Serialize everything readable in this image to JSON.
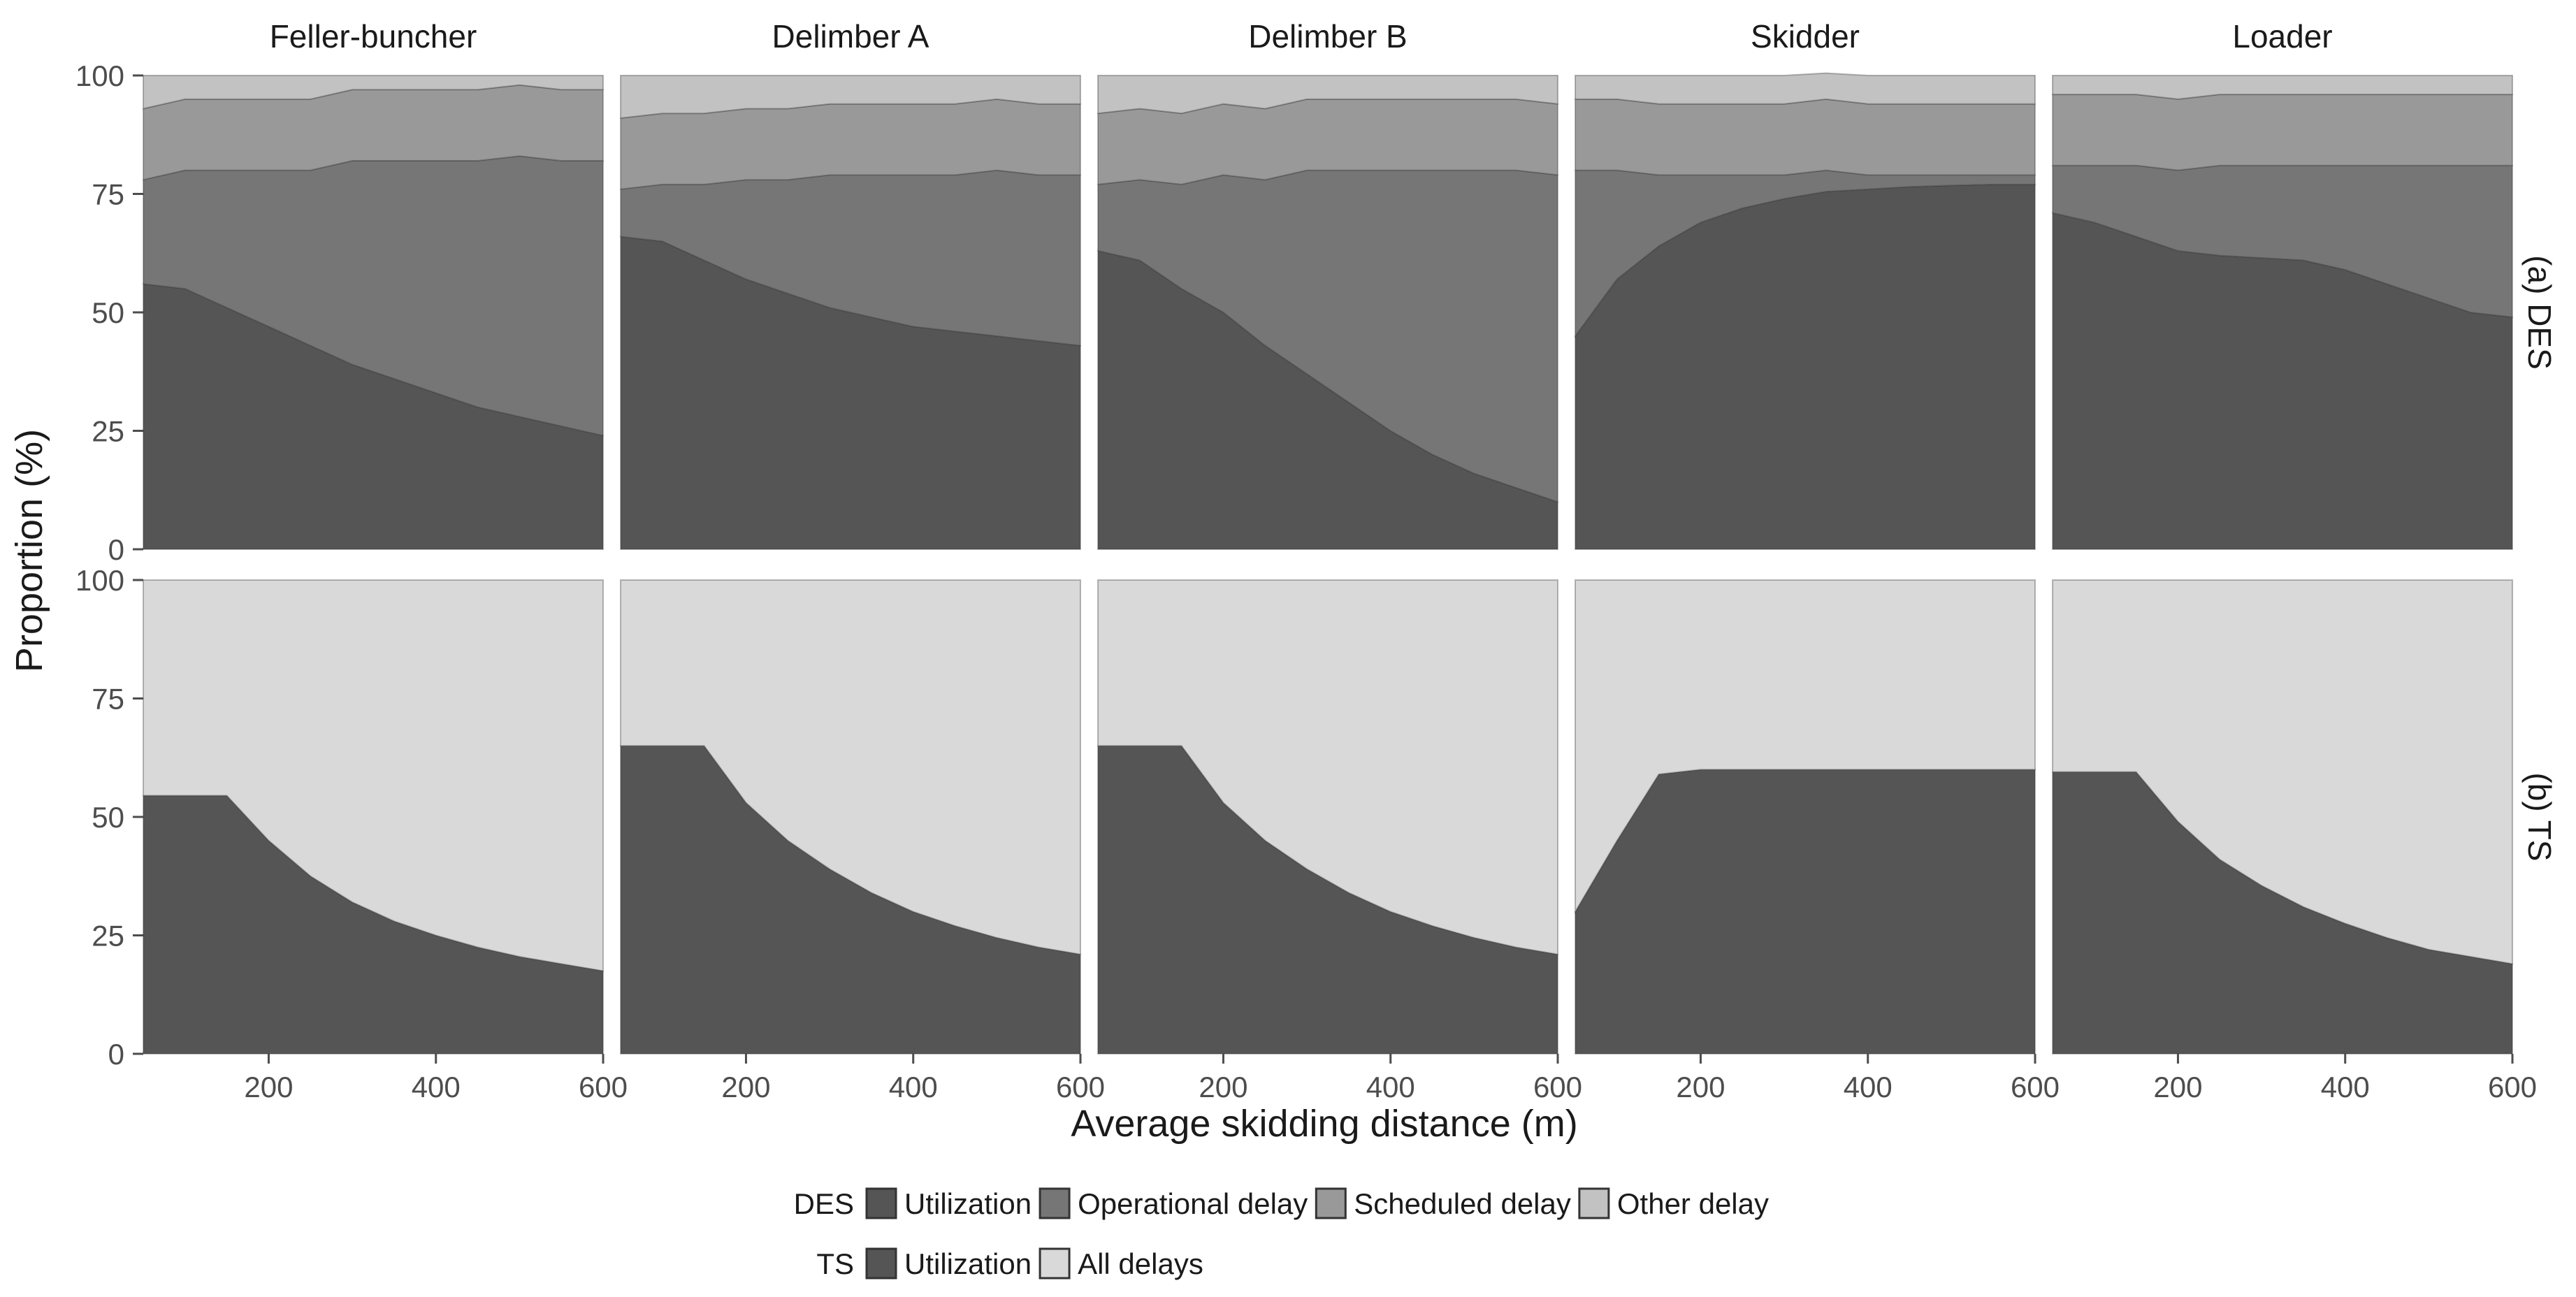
{
  "chart_data": {
    "type": "area",
    "title": "",
    "xlabel": "Average skidding distance (m)",
    "ylabel": "Proportion (%)",
    "xlim": [
      50,
      600
    ],
    "ylim": [
      0,
      100
    ],
    "xticks": [
      200,
      400,
      600
    ],
    "yticks": [
      0,
      25,
      50,
      75,
      100
    ],
    "columns": [
      "Feller-buncher",
      "Delimber A",
      "Delimber B",
      "Skidder",
      "Loader"
    ],
    "rows": [
      {
        "label": "(a) DES",
        "categories": [
          "Utilization",
          "Operational delay",
          "Scheduled delay",
          "Other delay"
        ],
        "colors": [
          "#555555",
          "#767676",
          "#999999",
          "#c2c2c2"
        ],
        "panels": [
          {
            "x": [
              50,
              100,
              150,
              200,
              250,
              300,
              350,
              400,
              450,
              500,
              550,
              600
            ],
            "series": [
              {
                "name": "Utilization",
                "values": [
                  56,
                  55,
                  51,
                  47,
                  43,
                  39,
                  36,
                  33,
                  30,
                  28,
                  26,
                  24
                ]
              },
              {
                "name": "Operational delay",
                "values": [
                  22,
                  25,
                  29,
                  33,
                  37,
                  43,
                  46,
                  49,
                  52,
                  55,
                  56,
                  58
                ]
              },
              {
                "name": "Scheduled delay",
                "values": [
                  15,
                  15,
                  15,
                  15,
                  15,
                  15,
                  15,
                  15,
                  15,
                  15,
                  15,
                  15
                ]
              },
              {
                "name": "Other delay",
                "values": [
                  7,
                  5,
                  5,
                  5,
                  5,
                  3,
                  3,
                  3,
                  3,
                  2,
                  3,
                  3
                ]
              }
            ]
          },
          {
            "x": [
              50,
              100,
              150,
              200,
              250,
              300,
              350,
              400,
              450,
              500,
              550,
              600
            ],
            "series": [
              {
                "name": "Utilization",
                "values": [
                  66,
                  65,
                  61,
                  57,
                  54,
                  51,
                  49,
                  47,
                  46,
                  45,
                  44,
                  43
                ]
              },
              {
                "name": "Operational delay",
                "values": [
                  10,
                  12,
                  16,
                  21,
                  24,
                  28,
                  30,
                  32,
                  33,
                  35,
                  35,
                  36
                ]
              },
              {
                "name": "Scheduled delay",
                "values": [
                  15,
                  15,
                  15,
                  15,
                  15,
                  15,
                  15,
                  15,
                  15,
                  15,
                  15,
                  15
                ]
              },
              {
                "name": "Other delay",
                "values": [
                  9,
                  8,
                  8,
                  7,
                  7,
                  6,
                  6,
                  6,
                  6,
                  5,
                  6,
                  6
                ]
              }
            ]
          },
          {
            "x": [
              50,
              100,
              150,
              200,
              250,
              300,
              350,
              400,
              450,
              500,
              550,
              600
            ],
            "series": [
              {
                "name": "Utilization",
                "values": [
                  63,
                  61,
                  55,
                  50,
                  43,
                  37,
                  31,
                  25,
                  20,
                  16,
                  13,
                  10
                ]
              },
              {
                "name": "Operational delay",
                "values": [
                  14,
                  17,
                  22,
                  29,
                  35,
                  43,
                  49,
                  55,
                  60,
                  64,
                  67,
                  69
                ]
              },
              {
                "name": "Scheduled delay",
                "values": [
                  15,
                  15,
                  15,
                  15,
                  15,
                  15,
                  15,
                  15,
                  15,
                  15,
                  15,
                  15
                ]
              },
              {
                "name": "Other delay",
                "values": [
                  8,
                  7,
                  8,
                  6,
                  7,
                  5,
                  5,
                  5,
                  5,
                  5,
                  5,
                  6
                ]
              }
            ]
          },
          {
            "x": [
              50,
              100,
              150,
              200,
              250,
              300,
              350,
              400,
              450,
              500,
              550,
              600
            ],
            "series": [
              {
                "name": "Utilization",
                "values": [
                  45,
                  57,
                  64,
                  69,
                  72,
                  74,
                  75.5,
                  76,
                  76.5,
                  76.8,
                  77,
                  77
                ]
              },
              {
                "name": "Operational delay",
                "values": [
                  35,
                  23,
                  15,
                  10,
                  7,
                  5,
                  4.5,
                  3,
                  2.5,
                  2.2,
                  2,
                  2
                ]
              },
              {
                "name": "Scheduled delay",
                "values": [
                  15,
                  15,
                  15,
                  15,
                  15,
                  15,
                  15,
                  15,
                  15,
                  15,
                  15,
                  15
                ]
              },
              {
                "name": "Other delay",
                "values": [
                  5,
                  5,
                  6,
                  6,
                  6,
                  6,
                  5.5,
                  6,
                  6,
                  6,
                  6,
                  6
                ]
              }
            ]
          },
          {
            "x": [
              50,
              100,
              150,
              200,
              250,
              300,
              350,
              400,
              450,
              500,
              550,
              600
            ],
            "series": [
              {
                "name": "Utilization",
                "values": [
                  71,
                  69,
                  66,
                  63,
                  62,
                  61.5,
                  61,
                  59,
                  56,
                  53,
                  50,
                  49
                ]
              },
              {
                "name": "Operational delay",
                "values": [
                  10,
                  12,
                  15,
                  17,
                  19,
                  19.5,
                  20,
                  22,
                  25,
                  28,
                  31,
                  32
                ]
              },
              {
                "name": "Scheduled delay",
                "values": [
                  15,
                  15,
                  15,
                  15,
                  15,
                  15,
                  15,
                  15,
                  15,
                  15,
                  15,
                  15
                ]
              },
              {
                "name": "Other delay",
                "values": [
                  4,
                  4,
                  4,
                  5,
                  4,
                  4,
                  4,
                  4,
                  4,
                  4,
                  4,
                  4
                ]
              }
            ]
          }
        ]
      },
      {
        "label": "(b) TS",
        "categories": [
          "Utilization",
          "All delays"
        ],
        "colors": [
          "#555555",
          "#d9d9d9"
        ],
        "panels": [
          {
            "x": [
              50,
              100,
              150,
              200,
              250,
              300,
              350,
              400,
              450,
              500,
              550,
              600
            ],
            "series": [
              {
                "name": "Utilization",
                "values": [
                  54.5,
                  54.5,
                  54.5,
                  45,
                  37.5,
                  32,
                  28,
                  25,
                  22.5,
                  20.5,
                  19,
                  17.5
                ]
              },
              {
                "name": "All delays",
                "values": [
                  45.5,
                  45.5,
                  45.5,
                  55,
                  62.5,
                  68,
                  72,
                  75,
                  77.5,
                  79.5,
                  81,
                  82.5
                ]
              }
            ]
          },
          {
            "x": [
              50,
              100,
              150,
              200,
              250,
              300,
              350,
              400,
              450,
              500,
              550,
              600
            ],
            "series": [
              {
                "name": "Utilization",
                "values": [
                  65,
                  65,
                  65,
                  53,
                  45,
                  39,
                  34,
                  30,
                  27,
                  24.5,
                  22.5,
                  21
                ]
              },
              {
                "name": "All delays",
                "values": [
                  35,
                  35,
                  35,
                  47,
                  55,
                  61,
                  66,
                  70,
                  73,
                  75.5,
                  77.5,
                  79
                ]
              }
            ]
          },
          {
            "x": [
              50,
              100,
              150,
              200,
              250,
              300,
              350,
              400,
              450,
              500,
              550,
              600
            ],
            "series": [
              {
                "name": "Utilization",
                "values": [
                  65,
                  65,
                  65,
                  53,
                  45,
                  39,
                  34,
                  30,
                  27,
                  24.5,
                  22.5,
                  21
                ]
              },
              {
                "name": "All delays",
                "values": [
                  35,
                  35,
                  35,
                  47,
                  55,
                  61,
                  66,
                  70,
                  73,
                  75.5,
                  77.5,
                  79
                ]
              }
            ]
          },
          {
            "x": [
              50,
              100,
              150,
              200,
              250,
              300,
              350,
              400,
              450,
              500,
              550,
              600
            ],
            "series": [
              {
                "name": "Utilization",
                "values": [
                  30,
                  45,
                  59,
                  60,
                  60,
                  60,
                  60,
                  60,
                  60,
                  60,
                  60,
                  60
                ]
              },
              {
                "name": "All delays",
                "values": [
                  70,
                  55,
                  41,
                  40,
                  40,
                  40,
                  40,
                  40,
                  40,
                  40,
                  40,
                  40
                ]
              }
            ]
          },
          {
            "x": [
              50,
              100,
              150,
              200,
              250,
              300,
              350,
              400,
              450,
              500,
              550,
              600
            ],
            "series": [
              {
                "name": "Utilization",
                "values": [
                  59.5,
                  59.5,
                  59.5,
                  49,
                  41,
                  35.5,
                  31,
                  27.5,
                  24.5,
                  22,
                  20.5,
                  19
                ]
              },
              {
                "name": "All delays",
                "values": [
                  40.5,
                  40.5,
                  40.5,
                  51,
                  59,
                  64.5,
                  69,
                  72.5,
                  75.5,
                  78,
                  79.5,
                  81
                ]
              }
            ]
          }
        ]
      }
    ],
    "legend": [
      {
        "group": "DES",
        "items": [
          {
            "label": "Utilization",
            "color": "#555555"
          },
          {
            "label": "Operational delay",
            "color": "#767676"
          },
          {
            "label": "Scheduled delay",
            "color": "#999999"
          },
          {
            "label": "Other delay",
            "color": "#c2c2c2"
          }
        ]
      },
      {
        "group": "TS",
        "items": [
          {
            "label": "Utilization",
            "color": "#555555"
          },
          {
            "label": "All delays",
            "color": "#d9d9d9"
          }
        ]
      }
    ],
    "legend_position": "bottom"
  }
}
